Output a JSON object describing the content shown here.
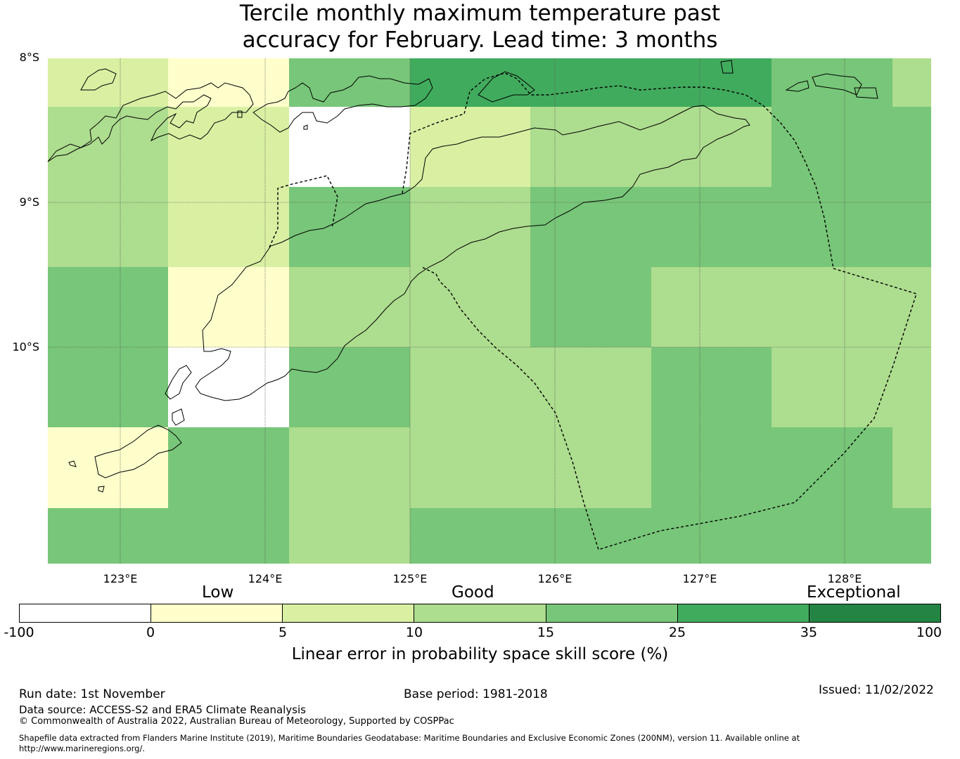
{
  "title": {
    "line1": "Tercile monthly maximum temperature past",
    "line2": "accuracy for February. Lead time: 3 months"
  },
  "map": {
    "lat_ticks": [
      "8°S",
      "9°S",
      "10°S"
    ],
    "lon_ticks": [
      "123°E",
      "124°E",
      "125°E",
      "126°E",
      "127°E",
      "128°E"
    ],
    "grid_rows": [
      [
        2,
        1,
        4,
        5,
        5,
        5,
        4,
        3
      ],
      [
        3,
        2,
        0,
        2,
        3,
        3,
        4,
        4
      ],
      [
        3,
        2,
        4,
        3,
        4,
        4,
        4,
        4
      ],
      [
        4,
        1,
        3,
        3,
        4,
        3,
        3,
        3
      ],
      [
        4,
        0,
        4,
        3,
        3,
        4,
        3,
        3
      ],
      [
        1,
        4,
        3,
        3,
        3,
        4,
        4,
        3
      ],
      [
        4,
        4,
        3,
        4,
        4,
        4,
        4,
        4
      ]
    ]
  },
  "colorbar": {
    "categories": [
      "Low",
      "Good",
      "Exceptional"
    ],
    "colors": [
      "#ffffff",
      "#ffffcc",
      "#d9f0a3",
      "#addd8e",
      "#78c679",
      "#41ab5d",
      "#238443"
    ],
    "ticks": [
      "-100",
      "0",
      "5",
      "10",
      "15",
      "25",
      "35",
      "100"
    ],
    "label": "Linear error in probability space skill score (%)"
  },
  "footer": {
    "run_date": "Run date: 1st November",
    "base_period": "Base period: 1981-2018",
    "issued": "Issued: 11/02/2022",
    "data_source": "Data source: ACCESS-S2 and ERA5 Climate Reanalysis",
    "copyright": "© Commonwealth of Australia 2022, Australian Bureau of Meteorology, Supported by COSPPac",
    "shapefile_line1": "Shapefile data extracted from Flanders Marine Institute (2019), Maritime Boundaries Geodatabase: Maritime Boundaries and Exclusive Economic Zones (200NM), version 11. Available online at",
    "shapefile_line2": "http://www.marineregions.org/."
  }
}
